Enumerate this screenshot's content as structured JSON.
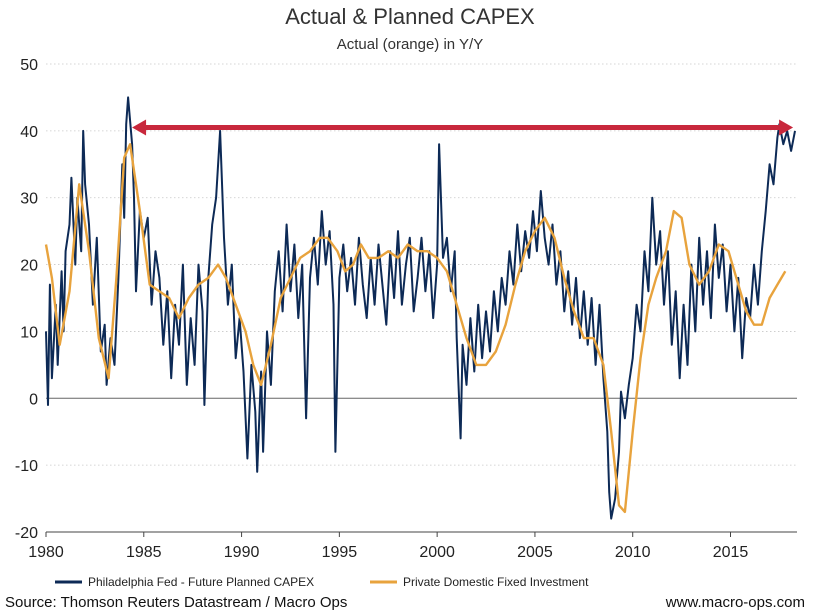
{
  "chart_data": {
    "type": "line",
    "title": "Actual & Planned CAPEX",
    "subtitle": "Actual (orange) in Y/Y",
    "xlabel": "",
    "ylabel": "",
    "xlim": [
      1980,
      2018.4
    ],
    "ylim": [
      -20,
      50
    ],
    "x_ticks": [
      1980,
      1985,
      1990,
      1995,
      2000,
      2005,
      2010,
      2015
    ],
    "x_tick_labels": [
      "1980",
      "1985",
      "1990",
      "1995",
      "2000",
      "2005",
      "2010",
      "2015"
    ],
    "y_ticks": [
      -20,
      -10,
      0,
      10,
      20,
      30,
      40,
      50
    ],
    "y_tick_labels": [
      "-20",
      "-10",
      "0",
      "10",
      "20",
      "30",
      "40",
      "50"
    ],
    "grid": true,
    "legend_position": "bottom",
    "colors": {
      "planned": "#0d2a56",
      "actual": "#e8a33d",
      "arrow": "#c8283c",
      "zero_line": "#666666"
    },
    "series": [
      {
        "name": "Philadelphia Fed - Future Planned CAPEX",
        "color": "#0d2a56",
        "points": [
          [
            1980.0,
            10
          ],
          [
            1980.1,
            -1
          ],
          [
            1980.2,
            17
          ],
          [
            1980.3,
            3
          ],
          [
            1980.5,
            14
          ],
          [
            1980.6,
            5
          ],
          [
            1980.8,
            19
          ],
          [
            1980.9,
            10
          ],
          [
            1981.0,
            22
          ],
          [
            1981.2,
            26
          ],
          [
            1981.3,
            33
          ],
          [
            1981.5,
            20
          ],
          [
            1981.6,
            30
          ],
          [
            1981.8,
            22
          ],
          [
            1981.9,
            40
          ],
          [
            1982.0,
            32
          ],
          [
            1982.2,
            26
          ],
          [
            1982.4,
            14
          ],
          [
            1982.6,
            24
          ],
          [
            1982.8,
            7
          ],
          [
            1983.0,
            11
          ],
          [
            1983.1,
            2
          ],
          [
            1983.3,
            9
          ],
          [
            1983.5,
            5
          ],
          [
            1983.7,
            18
          ],
          [
            1983.9,
            35
          ],
          [
            1984.0,
            27
          ],
          [
            1984.1,
            41
          ],
          [
            1984.2,
            45
          ],
          [
            1984.4,
            38
          ],
          [
            1984.5,
            30
          ],
          [
            1984.6,
            16
          ],
          [
            1984.8,
            28
          ],
          [
            1985.0,
            24
          ],
          [
            1985.2,
            27
          ],
          [
            1985.4,
            14
          ],
          [
            1985.6,
            22
          ],
          [
            1985.8,
            18
          ],
          [
            1986.0,
            8
          ],
          [
            1986.2,
            16
          ],
          [
            1986.4,
            3
          ],
          [
            1986.6,
            14
          ],
          [
            1986.8,
            8
          ],
          [
            1987.0,
            20
          ],
          [
            1987.2,
            2
          ],
          [
            1987.4,
            12
          ],
          [
            1987.6,
            5
          ],
          [
            1987.8,
            20
          ],
          [
            1988.0,
            13
          ],
          [
            1988.1,
            -1
          ],
          [
            1988.3,
            18
          ],
          [
            1988.5,
            26
          ],
          [
            1988.7,
            30
          ],
          [
            1988.9,
            40
          ],
          [
            1989.1,
            24
          ],
          [
            1989.3,
            14
          ],
          [
            1989.5,
            20
          ],
          [
            1989.7,
            6
          ],
          [
            1989.9,
            12
          ],
          [
            1990.1,
            4
          ],
          [
            1990.3,
            -9
          ],
          [
            1990.5,
            5
          ],
          [
            1990.7,
            -2
          ],
          [
            1990.8,
            -11
          ],
          [
            1991.0,
            4
          ],
          [
            1991.1,
            -8
          ],
          [
            1991.3,
            10
          ],
          [
            1991.5,
            2
          ],
          [
            1991.7,
            16
          ],
          [
            1991.9,
            22
          ],
          [
            1992.1,
            13
          ],
          [
            1992.3,
            26
          ],
          [
            1992.5,
            16
          ],
          [
            1992.7,
            23
          ],
          [
            1992.9,
            12
          ],
          [
            1993.1,
            20
          ],
          [
            1993.3,
            -3
          ],
          [
            1993.5,
            18
          ],
          [
            1993.7,
            24
          ],
          [
            1993.9,
            17
          ],
          [
            1994.1,
            28
          ],
          [
            1994.3,
            20
          ],
          [
            1994.5,
            25
          ],
          [
            1994.7,
            14
          ],
          [
            1994.8,
            -8
          ],
          [
            1995.0,
            18
          ],
          [
            1995.2,
            23
          ],
          [
            1995.4,
            16
          ],
          [
            1995.6,
            21
          ],
          [
            1995.8,
            14
          ],
          [
            1996.0,
            24
          ],
          [
            1996.2,
            17
          ],
          [
            1996.4,
            12
          ],
          [
            1996.6,
            21
          ],
          [
            1996.8,
            14
          ],
          [
            1997.0,
            23
          ],
          [
            1997.2,
            17
          ],
          [
            1997.4,
            11
          ],
          [
            1997.6,
            22
          ],
          [
            1997.8,
            15
          ],
          [
            1998.0,
            25
          ],
          [
            1998.2,
            14
          ],
          [
            1998.4,
            20
          ],
          [
            1998.6,
            24
          ],
          [
            1998.8,
            13
          ],
          [
            1999.0,
            18
          ],
          [
            1999.2,
            24
          ],
          [
            1999.4,
            16
          ],
          [
            1999.6,
            22
          ],
          [
            1999.8,
            12
          ],
          [
            2000.0,
            20
          ],
          [
            2000.1,
            38
          ],
          [
            2000.3,
            21
          ],
          [
            2000.5,
            24
          ],
          [
            2000.7,
            16
          ],
          [
            2000.9,
            22
          ],
          [
            2001.0,
            9
          ],
          [
            2001.2,
            -6
          ],
          [
            2001.3,
            8
          ],
          [
            2001.5,
            2
          ],
          [
            2001.7,
            12
          ],
          [
            2001.9,
            4
          ],
          [
            2002.1,
            14
          ],
          [
            2002.3,
            6
          ],
          [
            2002.5,
            13
          ],
          [
            2002.7,
            7
          ],
          [
            2002.9,
            16
          ],
          [
            2003.1,
            10
          ],
          [
            2003.3,
            18
          ],
          [
            2003.5,
            14
          ],
          [
            2003.7,
            22
          ],
          [
            2003.9,
            17
          ],
          [
            2004.1,
            26
          ],
          [
            2004.3,
            19
          ],
          [
            2004.5,
            25
          ],
          [
            2004.7,
            21
          ],
          [
            2004.9,
            28
          ],
          [
            2005.1,
            22
          ],
          [
            2005.3,
            31
          ],
          [
            2005.5,
            24
          ],
          [
            2005.7,
            20
          ],
          [
            2005.9,
            26
          ],
          [
            2006.1,
            17
          ],
          [
            2006.3,
            22
          ],
          [
            2006.5,
            13
          ],
          [
            2006.7,
            19
          ],
          [
            2006.9,
            11
          ],
          [
            2007.1,
            18
          ],
          [
            2007.3,
            9
          ],
          [
            2007.5,
            16
          ],
          [
            2007.7,
            8
          ],
          [
            2007.9,
            15
          ],
          [
            2008.1,
            5
          ],
          [
            2008.3,
            14
          ],
          [
            2008.5,
            3
          ],
          [
            2008.7,
            -5
          ],
          [
            2008.8,
            -14
          ],
          [
            2008.9,
            -18
          ],
          [
            2009.1,
            -15
          ],
          [
            2009.3,
            -8
          ],
          [
            2009.4,
            1
          ],
          [
            2009.6,
            -3
          ],
          [
            2009.8,
            2
          ],
          [
            2010.0,
            6
          ],
          [
            2010.2,
            14
          ],
          [
            2010.4,
            10
          ],
          [
            2010.6,
            22
          ],
          [
            2010.8,
            16
          ],
          [
            2011.0,
            30
          ],
          [
            2011.2,
            20
          ],
          [
            2011.4,
            25
          ],
          [
            2011.6,
            14
          ],
          [
            2011.8,
            22
          ],
          [
            2012.0,
            8
          ],
          [
            2012.2,
            16
          ],
          [
            2012.4,
            3
          ],
          [
            2012.6,
            14
          ],
          [
            2012.8,
            5
          ],
          [
            2013.0,
            20
          ],
          [
            2013.2,
            10
          ],
          [
            2013.4,
            24
          ],
          [
            2013.6,
            14
          ],
          [
            2013.8,
            22
          ],
          [
            2014.0,
            12
          ],
          [
            2014.2,
            26
          ],
          [
            2014.4,
            18
          ],
          [
            2014.6,
            23
          ],
          [
            2014.8,
            13
          ],
          [
            2015.0,
            20
          ],
          [
            2015.2,
            10
          ],
          [
            2015.4,
            18
          ],
          [
            2015.6,
            6
          ],
          [
            2015.8,
            15
          ],
          [
            2016.0,
            12
          ],
          [
            2016.2,
            20
          ],
          [
            2016.4,
            14
          ],
          [
            2016.6,
            22
          ],
          [
            2016.8,
            28
          ],
          [
            2017.0,
            35
          ],
          [
            2017.2,
            32
          ],
          [
            2017.4,
            39
          ],
          [
            2017.5,
            41
          ],
          [
            2017.7,
            38
          ],
          [
            2017.9,
            40
          ],
          [
            2018.1,
            37
          ],
          [
            2018.3,
            40
          ]
        ]
      },
      {
        "name": "Private Domestic Fixed Investment",
        "color": "#e8a33d",
        "points": [
          [
            1980.0,
            23
          ],
          [
            1980.3,
            18
          ],
          [
            1980.7,
            8
          ],
          [
            1981.2,
            16
          ],
          [
            1981.7,
            32
          ],
          [
            1982.2,
            22
          ],
          [
            1982.7,
            9
          ],
          [
            1983.2,
            3
          ],
          [
            1983.6,
            18
          ],
          [
            1984.0,
            36
          ],
          [
            1984.3,
            38
          ],
          [
            1984.8,
            28
          ],
          [
            1985.3,
            17
          ],
          [
            1985.8,
            16
          ],
          [
            1986.3,
            15
          ],
          [
            1986.8,
            12
          ],
          [
            1987.3,
            15
          ],
          [
            1987.8,
            17
          ],
          [
            1988.3,
            18
          ],
          [
            1988.8,
            20
          ],
          [
            1989.2,
            18
          ],
          [
            1989.7,
            14
          ],
          [
            1990.2,
            10
          ],
          [
            1990.6,
            5
          ],
          [
            1991.0,
            2
          ],
          [
            1991.5,
            8
          ],
          [
            1992.0,
            15
          ],
          [
            1992.5,
            18
          ],
          [
            1993.0,
            21
          ],
          [
            1993.5,
            22
          ],
          [
            1994.0,
            24
          ],
          [
            1994.4,
            24
          ],
          [
            1994.9,
            22
          ],
          [
            1995.3,
            19
          ],
          [
            1995.7,
            20
          ],
          [
            1996.1,
            23
          ],
          [
            1996.5,
            21
          ],
          [
            1997.0,
            21
          ],
          [
            1997.5,
            22
          ],
          [
            1998.0,
            21
          ],
          [
            1998.5,
            23
          ],
          [
            1999.0,
            22
          ],
          [
            1999.5,
            22
          ],
          [
            2000.0,
            21
          ],
          [
            2000.5,
            19
          ],
          [
            2001.0,
            14
          ],
          [
            2001.5,
            9
          ],
          [
            2002.0,
            5
          ],
          [
            2002.5,
            5
          ],
          [
            2003.0,
            7
          ],
          [
            2003.5,
            11
          ],
          [
            2004.0,
            17
          ],
          [
            2004.5,
            22
          ],
          [
            2005.0,
            25
          ],
          [
            2005.5,
            27
          ],
          [
            2006.0,
            24
          ],
          [
            2006.5,
            18
          ],
          [
            2007.0,
            13
          ],
          [
            2007.5,
            9
          ],
          [
            2008.0,
            9
          ],
          [
            2008.5,
            5
          ],
          [
            2008.9,
            -5
          ],
          [
            2009.3,
            -16
          ],
          [
            2009.6,
            -17
          ],
          [
            2010.0,
            -5
          ],
          [
            2010.4,
            6
          ],
          [
            2010.8,
            14
          ],
          [
            2011.2,
            18
          ],
          [
            2011.7,
            22
          ],
          [
            2012.1,
            28
          ],
          [
            2012.5,
            27
          ],
          [
            2012.9,
            20
          ],
          [
            2013.4,
            17
          ],
          [
            2013.9,
            19
          ],
          [
            2014.4,
            23
          ],
          [
            2014.9,
            22
          ],
          [
            2015.4,
            17
          ],
          [
            2015.8,
            13
          ],
          [
            2016.2,
            11
          ],
          [
            2016.6,
            11
          ],
          [
            2017.0,
            15
          ],
          [
            2017.4,
            17
          ],
          [
            2017.8,
            19
          ]
        ]
      }
    ],
    "annotations": [
      {
        "type": "double-arrow",
        "from": [
          1984.4,
          40.5
        ],
        "to": [
          2018.2,
          40.5
        ]
      }
    ]
  },
  "legend": {
    "planned_label": "Philadelphia Fed - Future Planned CAPEX",
    "actual_label": "Private Domestic Fixed Investment"
  },
  "footer": {
    "source": "Source: Thomson Reuters Datastream / Macro Ops",
    "website": "www.macro-ops.com"
  }
}
